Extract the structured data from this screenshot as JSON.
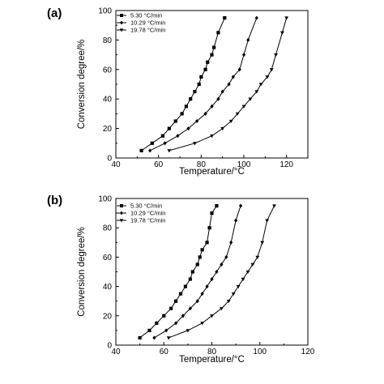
{
  "chart_data": [
    {
      "type": "line",
      "panel_label": "(a)",
      "xlabel": "Temperature/°C",
      "ylabel": "Conversion degree/%",
      "xlim": [
        40,
        130
      ],
      "ylim": [
        0,
        100
      ],
      "xticks": [
        40,
        60,
        80,
        100,
        120
      ],
      "yticks": [
        0,
        20,
        40,
        60,
        80,
        100
      ],
      "grid": false,
      "legend_position": "top-left",
      "series": [
        {
          "name": "5.30 °C/min",
          "marker": "square",
          "x": [
            52,
            57,
            62,
            65,
            68,
            71,
            73,
            75,
            77,
            79,
            80,
            82,
            83,
            85,
            86,
            88,
            91
          ],
          "y": [
            5,
            10,
            15,
            20,
            25,
            30,
            35,
            40,
            45,
            50,
            55,
            60,
            65,
            70,
            75,
            85,
            95
          ]
        },
        {
          "name": "10.29 °C/min",
          "marker": "diamond",
          "x": [
            56,
            63,
            69,
            74,
            78,
            82,
            85,
            88,
            90,
            93,
            95,
            98,
            100,
            102,
            106
          ],
          "y": [
            5,
            10,
            15,
            20,
            25,
            30,
            35,
            40,
            45,
            50,
            55,
            60,
            70,
            80,
            95
          ]
        },
        {
          "name": "19.78 °C/min",
          "marker": "triangle-down",
          "x": [
            65,
            77,
            85,
            90,
            94,
            97,
            100,
            103,
            106,
            108,
            111,
            113,
            115,
            118,
            120
          ],
          "y": [
            5,
            10,
            15,
            20,
            25,
            30,
            35,
            40,
            45,
            50,
            55,
            60,
            70,
            85,
            95
          ]
        }
      ]
    },
    {
      "type": "line",
      "panel_label": "(b)",
      "xlabel": "Temperature/°C",
      "ylabel": "Conversion degree/%",
      "xlim": [
        40,
        120
      ],
      "ylim": [
        0,
        100
      ],
      "xticks": [
        40,
        60,
        80,
        100,
        120
      ],
      "yticks": [
        0,
        20,
        40,
        60,
        80,
        100
      ],
      "grid": false,
      "legend_position": "top-left",
      "series": [
        {
          "name": "5.30 °C/min",
          "marker": "square",
          "x": [
            50,
            54,
            57,
            60,
            63,
            65,
            67,
            69,
            71,
            72,
            74,
            75,
            76,
            78,
            79,
            80,
            82
          ],
          "y": [
            5,
            10,
            15,
            20,
            25,
            30,
            35,
            40,
            45,
            50,
            55,
            60,
            65,
            70,
            80,
            90,
            95
          ]
        },
        {
          "name": "10.29 °C/min",
          "marker": "diamond",
          "x": [
            56,
            61,
            65,
            68,
            71,
            74,
            76,
            78,
            80,
            82,
            84,
            86,
            88,
            90,
            92
          ],
          "y": [
            5,
            10,
            15,
            20,
            25,
            30,
            35,
            40,
            45,
            50,
            55,
            60,
            70,
            85,
            95
          ]
        },
        {
          "name": "19.78 °C/min",
          "marker": "triangle-down",
          "x": [
            62,
            70,
            76,
            80,
            84,
            87,
            89,
            91,
            93,
            95,
            97,
            99,
            101,
            103,
            106
          ],
          "y": [
            5,
            10,
            15,
            20,
            25,
            30,
            35,
            40,
            45,
            50,
            55,
            60,
            70,
            85,
            95
          ]
        }
      ]
    }
  ]
}
